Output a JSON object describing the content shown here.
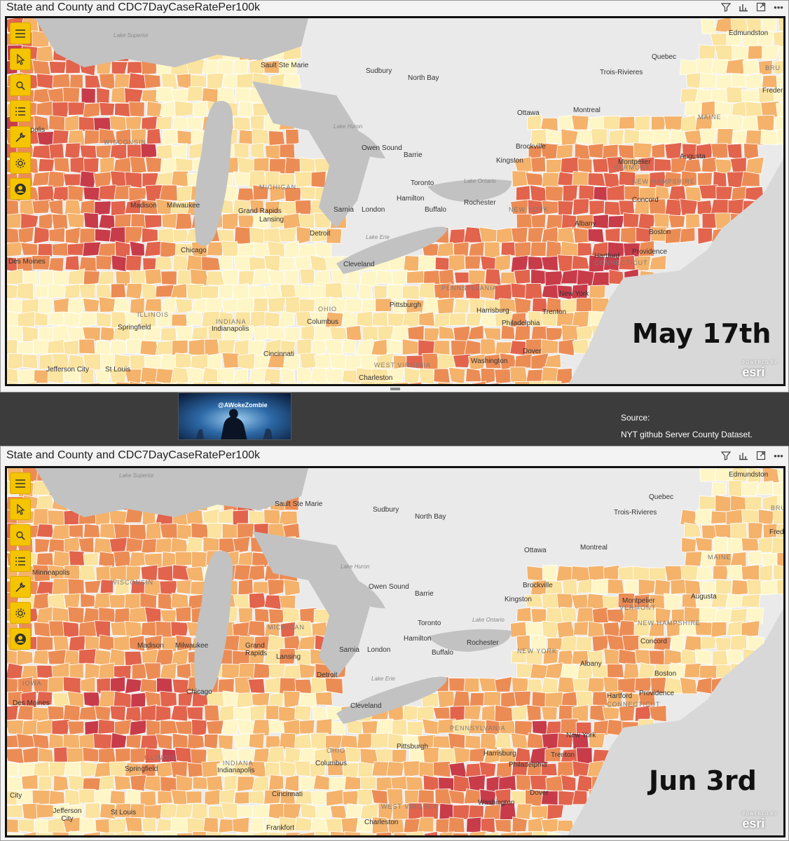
{
  "top_panel": {
    "title": "State and County and CDC7DayCaseRatePer100k",
    "date_label": "May 17th"
  },
  "bottom_panel": {
    "title": "State and County and CDC7DayCaseRatePer100k",
    "date_label": "Jun 3rd"
  },
  "header_icons": [
    "filter-icon",
    "focus-mode-icon",
    "expand-icon",
    "more-options-icon"
  ],
  "toolbar_icons": [
    "menu-icon",
    "select-arrow-icon",
    "search-icon",
    "legend-icon",
    "tools-wrench-icon",
    "settings-gear-icon",
    "account-icon"
  ],
  "middle": {
    "badge_text": "@AWokeZombie",
    "source_label": "Source:",
    "source_text": "NYT github Server County Dataset."
  },
  "map_labels": {
    "cities_top": [
      "Edmundston",
      "Quebec",
      "Sudbury",
      "North Bay",
      "Sault Ste Marie",
      "Trois-Rivieres",
      "Fredericton",
      "Ottawa",
      "Montreal",
      "Owen Sound",
      "Barrie",
      "Brockville",
      "Augusta",
      "Kingston",
      "Montpelier",
      "Toronto",
      "Hamilton",
      "Rochester",
      "London",
      "Sarnia",
      "Buffalo",
      "Concord",
      "Madison",
      "Milwaukee",
      "Grand Rapids",
      "Lansing",
      "Detroit",
      "Albany",
      "Boston",
      "Chicago",
      "Cleveland",
      "Hartford",
      "Providence",
      "Des Moines",
      "Pittsburgh",
      "Harrisburg",
      "New York",
      "Trenton",
      "Columbus",
      "Springfield",
      "Indianapolis",
      "Philadelphia",
      "Cincinnati",
      "Dover",
      "Jefferson City",
      "St Louis",
      "Washington",
      "Charleston",
      "Minneapolis",
      "Frankfort",
      "City"
    ],
    "states": [
      "WISCONSIN",
      "MICHIGAN",
      "IOWA",
      "ILLINOIS",
      "INDIANA",
      "OHIO",
      "PENNSYLVANIA",
      "NEW YORK",
      "VERMONT",
      "NEW HAMPSHIRE",
      "MAINE",
      "CONNECTICUT",
      "WEST VIRGINIA",
      "BRU"
    ],
    "water": [
      "Lake Superior",
      "Lake Huron",
      "Lake Ontario",
      "Lake Erie"
    ],
    "partial": [
      "apolis",
      "Frederi",
      "Fred"
    ]
  },
  "colors": {
    "rate_lowest": "#fff6c8",
    "rate_low": "#fbe3a0",
    "rate_mid": "#f4b26b",
    "rate_high": "#ec8c55",
    "rate_higher": "#e2644c",
    "rate_highest": "#c83c4a",
    "land": "#eaeaea",
    "water": "#c2c2c2",
    "toolbar": "#f5c400"
  }
}
